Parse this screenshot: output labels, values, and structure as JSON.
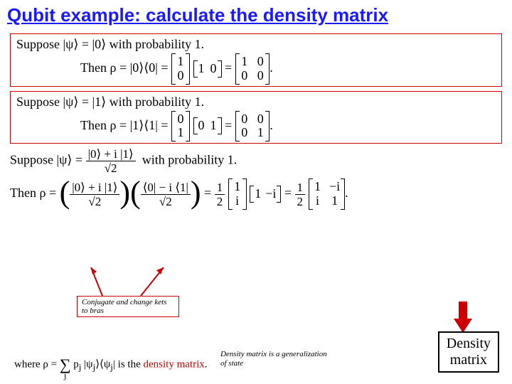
{
  "title": "Qubit example: calculate the density matrix",
  "box1": {
    "suppose": "Suppose |ψ⟩ = |0⟩ with probability 1.",
    "then_prefix": "Then ρ = |0⟩⟨0| =",
    "col": [
      "1",
      "0"
    ],
    "row": [
      "1",
      "0"
    ],
    "result": [
      [
        "1",
        "0"
      ],
      [
        "0",
        "0"
      ]
    ]
  },
  "box2": {
    "suppose": "Suppose |ψ⟩ = |1⟩ with probability 1.",
    "then_prefix": "Then ρ = |1⟩⟨1| =",
    "col": [
      "0",
      "1"
    ],
    "row": [
      "0",
      "1"
    ],
    "result": [
      [
        "0",
        "0"
      ],
      [
        "0",
        "1"
      ]
    ]
  },
  "box3": {
    "suppose_prefix": "Suppose |ψ⟩ =",
    "frac_num": "|0⟩ + i |1⟩",
    "frac_den": "√2",
    "suppose_suffix": "with probability 1.",
    "then_prefix": "Then ρ =",
    "ket_num": "|0⟩ + i |1⟩",
    "ket_den": "√2",
    "bra_num": "⟨0| − i ⟨1|",
    "bra_den": "√2",
    "half": "1",
    "half_den": "2",
    "col": [
      "1",
      "i"
    ],
    "row": [
      "1",
      "−i"
    ],
    "result": [
      [
        "1",
        "−i"
      ],
      [
        "i",
        "1"
      ]
    ]
  },
  "notes": {
    "conjugate": "Conjugate and change kets to bras",
    "generalization": "Density matrix is a generalization of state"
  },
  "where": {
    "prefix": "where ρ = ",
    "sum": "∑",
    "sub": "j",
    "body": " p",
    "subj": "j",
    "mid": " |ψ",
    "ket_close": "⟩⟨ψ",
    "bra_close": "| is the ",
    "dm": "density matrix",
    "period": "."
  },
  "dm_label": "Density matrix",
  "colors": {
    "title": "#1a1aff",
    "frame": "#cc0000",
    "arrow": "#cc0000"
  }
}
